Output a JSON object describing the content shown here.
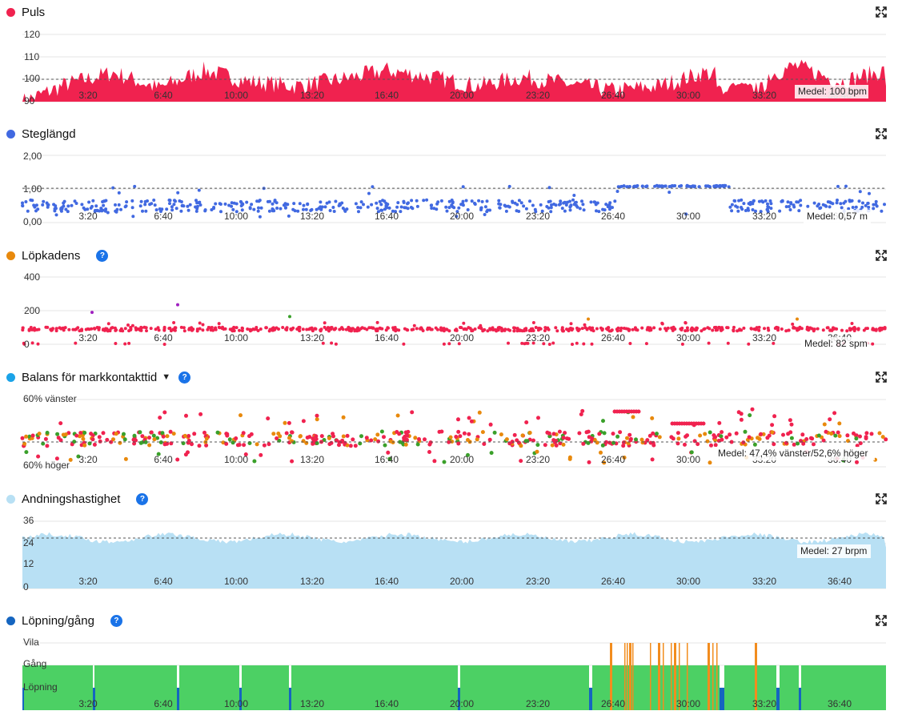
{
  "x_ticks": [
    "3:20",
    "6:40",
    "10:00",
    "13:20",
    "16:40",
    "20:00",
    "23:20",
    "26:40",
    "30:00",
    "33:20",
    "36:40"
  ],
  "icons": {
    "expand": "expand-icon",
    "help": "help-icon",
    "caret": "caret-down-icon"
  },
  "chart_data": [
    {
      "type": "area",
      "title": "Puls",
      "color": "#f0224f",
      "y_ticks": [
        "120",
        "110",
        "100",
        "90"
      ],
      "ylim": [
        90,
        120
      ],
      "x": [
        0,
        2,
        4,
        6,
        8,
        10,
        12,
        14,
        16,
        18,
        20,
        22,
        24,
        26,
        28,
        30,
        32,
        34,
        36,
        38
      ],
      "values": [
        90,
        98,
        103,
        96,
        104,
        99,
        97,
        100,
        104,
        101,
        97,
        101,
        98,
        95,
        97,
        103,
        99,
        106,
        99,
        104
      ],
      "mean": 100,
      "mean_label": "Medel: 100 bpm"
    },
    {
      "type": "scatter",
      "title": "Steglängd",
      "color": "#4169e1",
      "y_ticks": [
        "2,00",
        "1,00",
        "0,00"
      ],
      "ylim": [
        0,
        2
      ],
      "mean": 0.57,
      "mean_label": "Medel: 0,57 m"
    },
    {
      "type": "scatter",
      "title": "Löpkadens",
      "color": "#f0224f",
      "y_ticks": [
        "400",
        "200",
        "0"
      ],
      "ylim": [
        0,
        400
      ],
      "mean": 82,
      "mean_label": "Medel: 82 spm",
      "has_help": true
    },
    {
      "type": "scatter",
      "title": "Balans för markkontakttid",
      "color": "#1aa3e8",
      "y_ticks": [
        "60% vänster",
        "60% höger"
      ],
      "mean_label": "Medel: 47,4% vänster/52,6% höger",
      "has_help": true,
      "has_dropdown": true
    },
    {
      "type": "area",
      "title": "Andningshastighet",
      "color": "#b8e0f4",
      "y_ticks": [
        "36",
        "24",
        "12",
        "0"
      ],
      "ylim": [
        0,
        36
      ],
      "mean": 27,
      "mean_label": "Medel: 27 brpm",
      "has_help": true
    },
    {
      "type": "bar",
      "title": "Löpning/gång",
      "color": "#1565c0",
      "y_ticks": [
        "Vila",
        "Gång",
        "Löpning"
      ],
      "has_help": true
    }
  ]
}
